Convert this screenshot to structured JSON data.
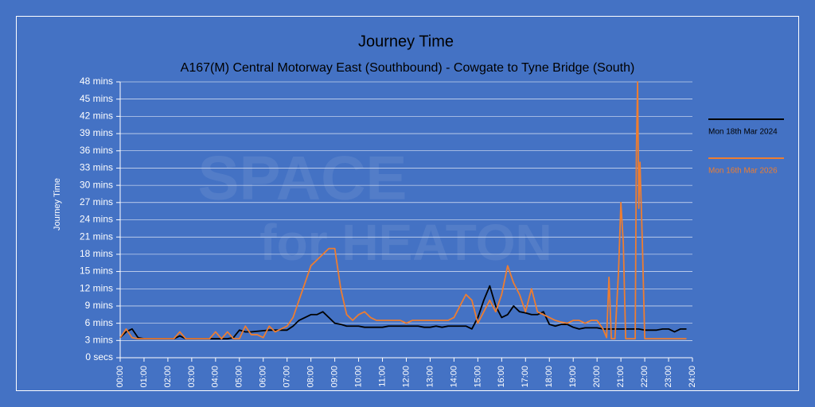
{
  "chart_data": {
    "type": "line",
    "title": "Journey Time",
    "subtitle": "A167(M) Central Motorway East (Southbound) - Cowgate to Tyne Bridge (South)",
    "y_label": "Journey Time",
    "watermark": [
      "SPACE",
      "for HEATON"
    ],
    "xlim": [
      0,
      24
    ],
    "xticks": [
      {
        "value": 0,
        "label": "00:00"
      },
      {
        "value": 1,
        "label": "01:00"
      },
      {
        "value": 2,
        "label": "02:00"
      },
      {
        "value": 3,
        "label": "03:00"
      },
      {
        "value": 4,
        "label": "04:00"
      },
      {
        "value": 5,
        "label": "05:00"
      },
      {
        "value": 6,
        "label": "06:00"
      },
      {
        "value": 7,
        "label": "07:00"
      },
      {
        "value": 8,
        "label": "08:00"
      },
      {
        "value": 9,
        "label": "09:00"
      },
      {
        "value": 10,
        "label": "10:00"
      },
      {
        "value": 11,
        "label": "11:00"
      },
      {
        "value": 12,
        "label": "12:00"
      },
      {
        "value": 13,
        "label": "13:00"
      },
      {
        "value": 14,
        "label": "14:00"
      },
      {
        "value": 15,
        "label": "15:00"
      },
      {
        "value": 16,
        "label": "16:00"
      },
      {
        "value": 17,
        "label": "17:00"
      },
      {
        "value": 18,
        "label": "18:00"
      },
      {
        "value": 19,
        "label": "19:00"
      },
      {
        "value": 20,
        "label": "20:00"
      },
      {
        "value": 21,
        "label": "21:00"
      },
      {
        "value": 22,
        "label": "22:00"
      },
      {
        "value": 23,
        "label": "23:00"
      },
      {
        "value": 24,
        "label": "24:00"
      }
    ],
    "ylim": [
      0,
      48
    ],
    "yticks": [
      {
        "value": 0,
        "label": "0 secs"
      },
      {
        "value": 3,
        "label": "3 mins"
      },
      {
        "value": 6,
        "label": "6 mins"
      },
      {
        "value": 9,
        "label": "9 mins"
      },
      {
        "value": 12,
        "label": "12 mins"
      },
      {
        "value": 15,
        "label": "15 mins"
      },
      {
        "value": 18,
        "label": "18 mins"
      },
      {
        "value": 21,
        "label": "21 mins"
      },
      {
        "value": 24,
        "label": "24 mins"
      },
      {
        "value": 27,
        "label": "27 mins"
      },
      {
        "value": 30,
        "label": "30 mins"
      },
      {
        "value": 33,
        "label": "33 mins"
      },
      {
        "value": 36,
        "label": "36 mins"
      },
      {
        "value": 39,
        "label": "39 mins"
      },
      {
        "value": 42,
        "label": "42 mins"
      },
      {
        "value": 45,
        "label": "45 mins"
      },
      {
        "value": 48,
        "label": "48 mins"
      }
    ],
    "grid": true,
    "legend": "right",
    "series": [
      {
        "name": "Mon 18th Mar 2024",
        "color": "#000000",
        "x": [
          0,
          0.25,
          0.5,
          0.75,
          1,
          1.25,
          1.5,
          1.75,
          2,
          2.25,
          2.5,
          2.75,
          3,
          3.25,
          3.5,
          3.75,
          4,
          4.25,
          4.5,
          4.75,
          5,
          5.25,
          5.5,
          5.75,
          6,
          6.25,
          6.5,
          6.75,
          7,
          7.25,
          7.5,
          7.75,
          8,
          8.25,
          8.5,
          8.75,
          9,
          9.25,
          9.5,
          9.75,
          10,
          10.25,
          10.5,
          10.75,
          11,
          11.25,
          11.5,
          11.75,
          12,
          12.25,
          12.5,
          12.75,
          13,
          13.25,
          13.5,
          13.75,
          14,
          14.25,
          14.5,
          14.75,
          15,
          15.25,
          15.5,
          15.75,
          16,
          16.25,
          16.5,
          16.75,
          17,
          17.25,
          17.5,
          17.75,
          18,
          18.25,
          18.5,
          18.75,
          19,
          19.25,
          19.5,
          19.75,
          20,
          20.25,
          20.5,
          20.75,
          21,
          21.25,
          21.5,
          21.75,
          22,
          22.25,
          22.5,
          22.75,
          23,
          23.25,
          23.5,
          23.75
        ],
        "values": [
          3.5,
          4.5,
          5,
          3.5,
          3.3,
          3.3,
          3.3,
          3.3,
          3.3,
          3.3,
          3.8,
          3.3,
          3.3,
          3.3,
          3.3,
          3.3,
          3.3,
          3.3,
          3.3,
          3.5,
          4.8,
          4.5,
          4.5,
          4.6,
          4.7,
          4.8,
          4.8,
          4.8,
          4.8,
          5.5,
          6.5,
          7,
          7.5,
          7.5,
          8,
          7,
          6,
          5.8,
          5.5,
          5.5,
          5.5,
          5.3,
          5.3,
          5.3,
          5.3,
          5.5,
          5.5,
          5.5,
          5.5,
          5.5,
          5.5,
          5.3,
          5.3,
          5.5,
          5.3,
          5.5,
          5.5,
          5.5,
          5.5,
          5,
          7,
          10,
          12.5,
          9,
          7,
          7.5,
          9,
          8,
          7.8,
          7.5,
          7.5,
          8,
          5.8,
          5.5,
          5.8,
          5.8,
          5.3,
          5,
          5.2,
          5.2,
          5.2,
          5,
          5,
          5,
          5,
          5,
          5,
          5,
          4.8,
          4.8,
          4.8,
          5,
          5,
          4.5,
          5,
          5
        ]
      },
      {
        "name": "Mon 16th Mar 2026",
        "color": "#ed7d31",
        "x": [
          0,
          0.25,
          0.5,
          0.75,
          1,
          1.25,
          1.5,
          1.75,
          2,
          2.25,
          2.5,
          2.75,
          3,
          3.25,
          3.5,
          3.75,
          4,
          4.25,
          4.5,
          4.75,
          5,
          5.25,
          5.5,
          5.75,
          6,
          6.25,
          6.5,
          6.75,
          7,
          7.25,
          7.5,
          7.75,
          8,
          8.25,
          8.5,
          8.75,
          9,
          9.25,
          9.5,
          9.75,
          10,
          10.25,
          10.5,
          10.75,
          11,
          11.25,
          11.5,
          11.75,
          12,
          12.25,
          12.5,
          12.75,
          13,
          13.25,
          13.5,
          13.75,
          14,
          14.25,
          14.5,
          14.75,
          15,
          15.25,
          15.5,
          15.75,
          16,
          16.25,
          16.5,
          16.75,
          17,
          17.25,
          17.5,
          17.75,
          18,
          18.25,
          18.5,
          18.75,
          19,
          19.25,
          19.5,
          19.75,
          20,
          20.25,
          20.4,
          20.5,
          20.6,
          20.75,
          20.9,
          21,
          21.1,
          21.2,
          21.6,
          21.65,
          21.7,
          21.75,
          21.8,
          21.9,
          22,
          23.75
        ],
        "values": [
          3.5,
          5,
          3.5,
          3.3,
          3.3,
          3.3,
          3.3,
          3.3,
          3.3,
          3.3,
          4.5,
          3.3,
          3.3,
          3.3,
          3.3,
          3.3,
          4.5,
          3.3,
          4.5,
          3.3,
          3.3,
          5.5,
          4,
          4,
          3.5,
          5.5,
          4.5,
          5,
          5.5,
          7,
          10,
          13,
          16,
          17,
          18,
          19,
          19,
          12,
          7.5,
          6.5,
          7.5,
          8,
          7,
          6.5,
          6.5,
          6.5,
          6.5,
          6.5,
          6,
          6.5,
          6.5,
          6.5,
          6.5,
          6.5,
          6.5,
          6.5,
          7,
          9,
          11,
          10,
          6,
          8,
          10,
          8,
          11,
          16,
          13,
          11,
          8,
          12,
          8,
          7.5,
          7,
          6.5,
          6.2,
          6,
          6.5,
          6.5,
          6,
          6.5,
          6.5,
          5,
          3.5,
          14,
          3.3,
          3.3,
          15,
          27,
          20,
          3.3,
          3.3,
          36,
          48,
          26,
          34,
          20,
          3.3,
          3.3
        ]
      }
    ]
  }
}
